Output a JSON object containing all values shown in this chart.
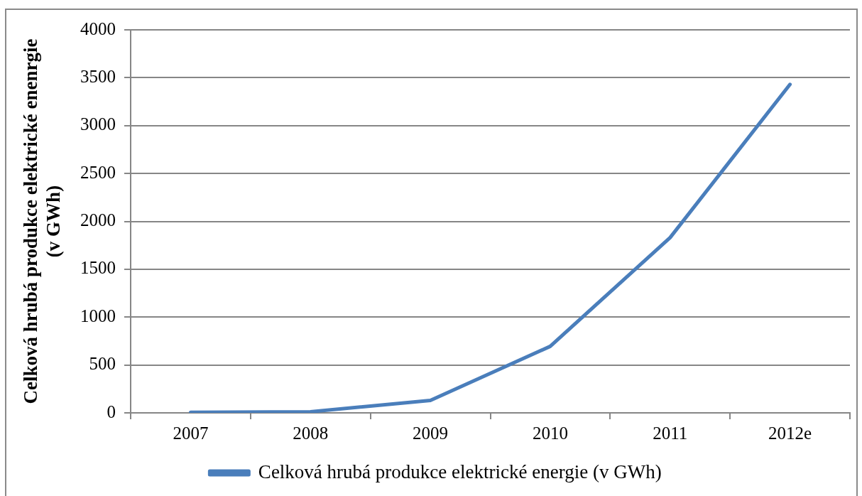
{
  "chart_data": {
    "type": "line",
    "categories": [
      "2007",
      "2008",
      "2009",
      "2010",
      "2011",
      "2012e"
    ],
    "series": [
      {
        "name": "Celková hrubá produkce elektrické energie (v GWh)",
        "color": "#4a7ebb",
        "values": [
          6,
          12,
          130,
          695,
          1830,
          3430
        ]
      }
    ],
    "ylabel": "Celková hrubá produkce elektrické enenrgie (v GWh)",
    "ylim": [
      0,
      4000
    ],
    "yticks": [
      0,
      500,
      1000,
      1500,
      2000,
      2500,
      3000,
      3500,
      4000
    ],
    "grid": "y",
    "legend": "bottom"
  }
}
